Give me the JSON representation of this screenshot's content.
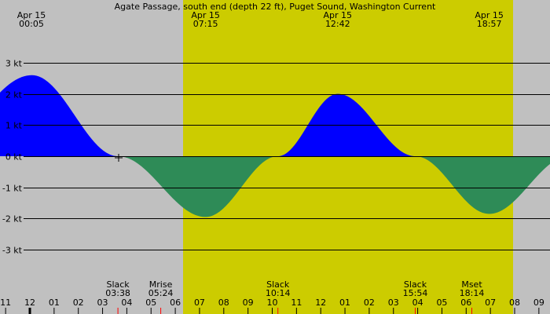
{
  "chart_data": {
    "type": "area",
    "title": "Agate Passage, south end (depth 22 ft), Puget Sound, Washington Current",
    "xlabel": "",
    "ylabel": "kt",
    "ylim": [
      -4,
      5
    ],
    "grid": true,
    "y_ticks": [
      "3 kt",
      "2 kt",
      "1 kt",
      "0 kt",
      "-1 kt",
      "-2 kt",
      "-3 kt"
    ],
    "y_tick_values": [
      3,
      2,
      1,
      0,
      -1,
      -2,
      -3
    ],
    "x_tick_labels": [
      "11",
      "12",
      "01",
      "02",
      "03",
      "04",
      "05",
      "06",
      "07",
      "08",
      "09",
      "10",
      "11",
      "12",
      "01",
      "02",
      "03",
      "04",
      "05",
      "06",
      "07",
      "08",
      "09"
    ],
    "daylight": {
      "start": "07:15",
      "end": "20:00"
    },
    "peaks": [
      {
        "date": "Apr 15",
        "time": "00:05",
        "value": 2.6,
        "type": "flood"
      },
      {
        "date": "Apr 15",
        "time": "07:15",
        "value": -1.95,
        "type": "ebb"
      },
      {
        "date": "Apr 15",
        "time": "12:42",
        "value": 2.0,
        "type": "flood"
      },
      {
        "date": "Apr 15",
        "time": "18:57",
        "value": -1.85,
        "type": "ebb"
      }
    ],
    "events": [
      {
        "label": "Slack",
        "time": "03:38"
      },
      {
        "label": "Mrise",
        "time": "05:24"
      },
      {
        "label": "Slack",
        "time": "10:14"
      },
      {
        "label": "Slack",
        "time": "15:54"
      },
      {
        "label": "Mset",
        "time": "18:14"
      }
    ],
    "series": [
      {
        "name": "flood",
        "color": "#0000ff"
      },
      {
        "name": "ebb",
        "color": "#2e8b57"
      }
    ]
  },
  "colors": {
    "background": "#c0c0c0",
    "daylight": "#cccc00",
    "flood": "#0000ff",
    "ebb": "#2e8b57",
    "event_marker": "#ff0000"
  }
}
